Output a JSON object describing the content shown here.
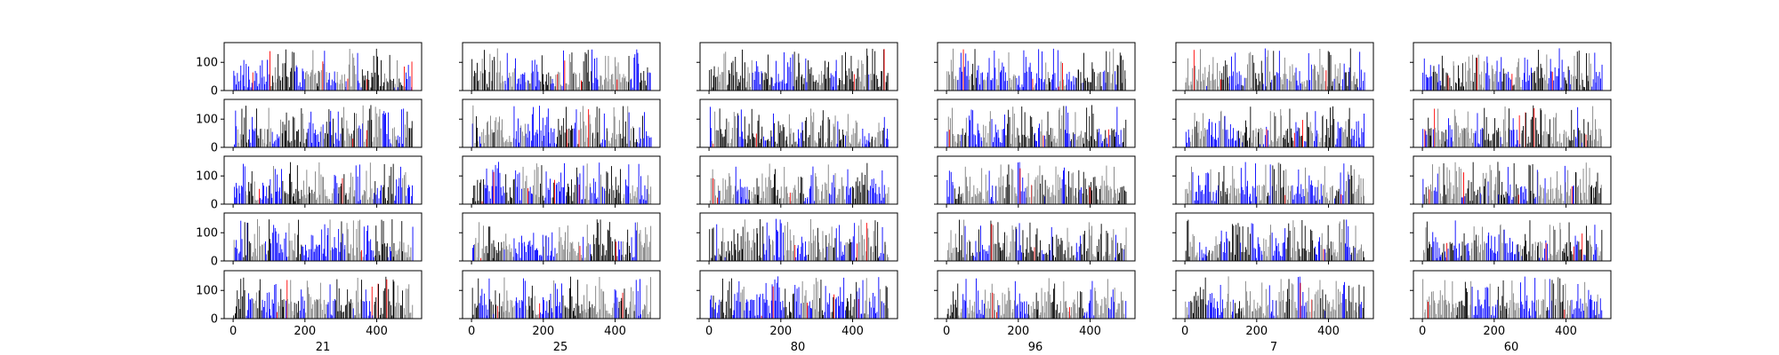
{
  "chart_data": {
    "type": "bar",
    "layout": {
      "rows": 5,
      "columns": 6,
      "shared_y_axis": true
    },
    "column_labels": [
      "21",
      "25",
      "80",
      "96",
      "7",
      "60"
    ],
    "x_ticks": [
      0,
      200,
      400
    ],
    "x_tick_labels": [
      "0",
      "200",
      "400"
    ],
    "y_ticks": [
      0,
      100
    ],
    "y_tick_labels": [
      "0",
      "100"
    ],
    "xlim": [
      -25,
      525
    ],
    "ylim": [
      0,
      170
    ],
    "x_range_of_bars": [
      0,
      500
    ],
    "bar_value_range": [
      0,
      150
    ],
    "bar_colors": [
      "#000000",
      "#0000ff",
      "#808080",
      "#ff0000"
    ],
    "grid": false,
    "legend": "none"
  }
}
